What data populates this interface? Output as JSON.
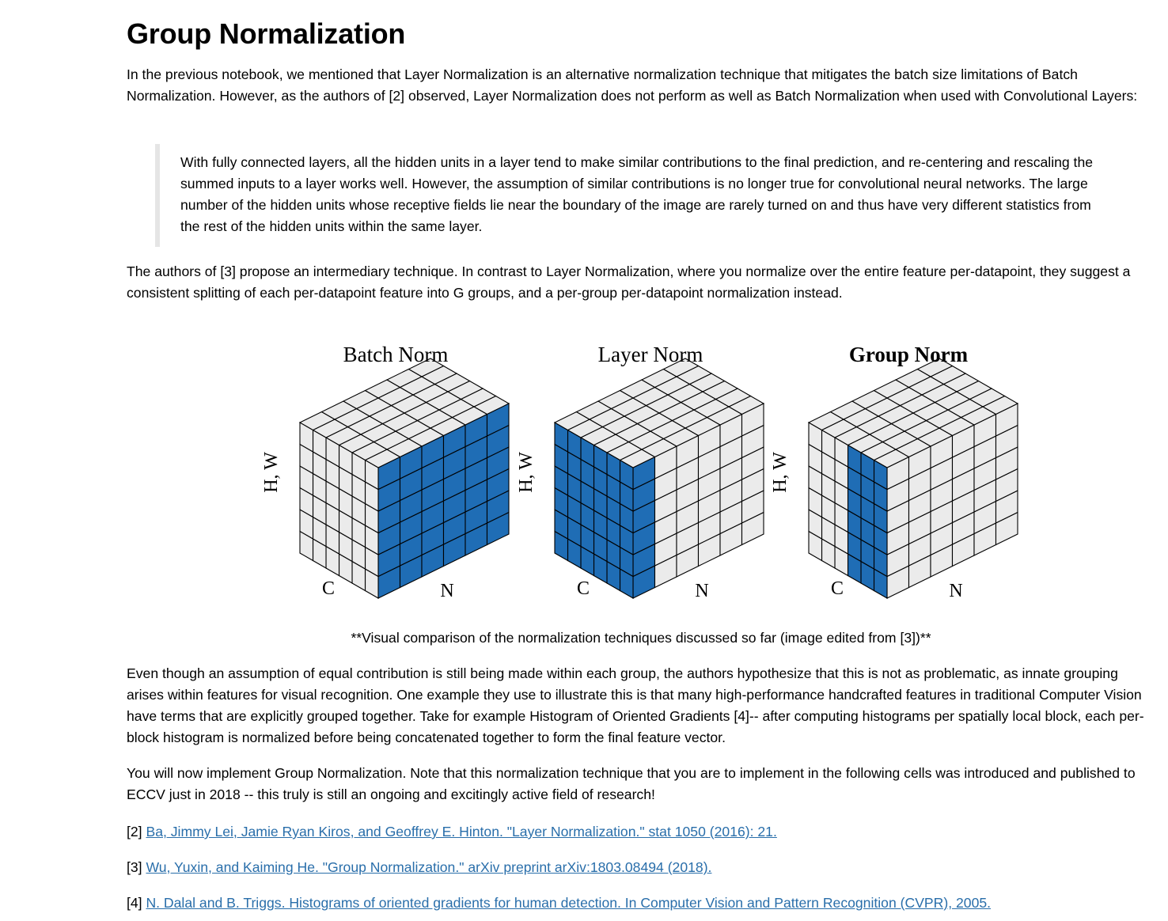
{
  "heading": "Group Normalization",
  "intro": "In the previous notebook, we mentioned that Layer Normalization is an alternative normalization technique that mitigates the batch size limitations of Batch Normalization. However, as the authors of [2] observed, Layer Normalization does not perform as well as Batch Normalization when used with Convolutional Layers:",
  "quote": "With fully connected layers, all the hidden units in a layer tend to make similar contributions to the final prediction, and re-centering and rescaling the summed inputs to a layer works well. However, the assumption of similar contributions is no longer true for convolutional neural networks. The large number of the hidden units whose receptive fields lie near the boundary of the image are rarely turned on and thus have very different statistics from the rest of the hidden units within the same layer.",
  "paragraph2": "The authors of [3] propose an intermediary technique. In contrast to Layer Normalization, where you normalize over the entire feature per-datapoint, they suggest a consistent splitting of each per-datapoint feature into G groups, and a per-group per-datapoint normalization instead.",
  "figure": {
    "panels": [
      {
        "title": "Batch Norm",
        "axis_hw": "H, W",
        "axis_c": "C",
        "axis_n": "N",
        "highlight": "batch"
      },
      {
        "title": "Layer Norm",
        "axis_hw": "H, W",
        "axis_c": "C",
        "axis_n": "N",
        "highlight": "layer"
      },
      {
        "title": "Group Norm",
        "axis_hw": "H, W",
        "axis_c": "C",
        "axis_n": "N",
        "highlight": "group"
      }
    ],
    "colors": {
      "highlight": "#1f6db5",
      "cell": "#ebebeb",
      "edge": "#000000"
    },
    "caption": "**Visual comparison of the normalization techniques discussed so far (image edited from [3])**"
  },
  "paragraph3": "Even though an assumption of equal contribution is still being made within each group, the authors hypothesize that this is not as problematic, as innate grouping arises within features for visual recognition. One example they use to illustrate this is that many high-performance handcrafted features in traditional Computer Vision have terms that are explicitly grouped together. Take for example Histogram of Oriented Gradients [4]-- after computing histograms per spatially local block, each per-block histogram is normalized before being concatenated together to form the final feature vector.",
  "paragraph4": "You will now implement Group Normalization. Note that this normalization technique that you are to implement in the following cells was introduced and published to ECCV just in 2018 -- this truly is still an ongoing and excitingly active field of research!",
  "references": [
    {
      "num": "[2]",
      "text": "Ba, Jimmy Lei, Jamie Ryan Kiros, and Geoffrey E. Hinton. \"Layer Normalization.\" stat 1050 (2016): 21."
    },
    {
      "num": "[3]",
      "text": "Wu, Yuxin, and Kaiming He. \"Group Normalization.\" arXiv preprint arXiv:1803.08494 (2018)."
    },
    {
      "num": "[4]",
      "text": "N. Dalal and B. Triggs. Histograms of oriented gradients for human detection. In Computer Vision and Pattern Recognition (CVPR), 2005."
    }
  ]
}
